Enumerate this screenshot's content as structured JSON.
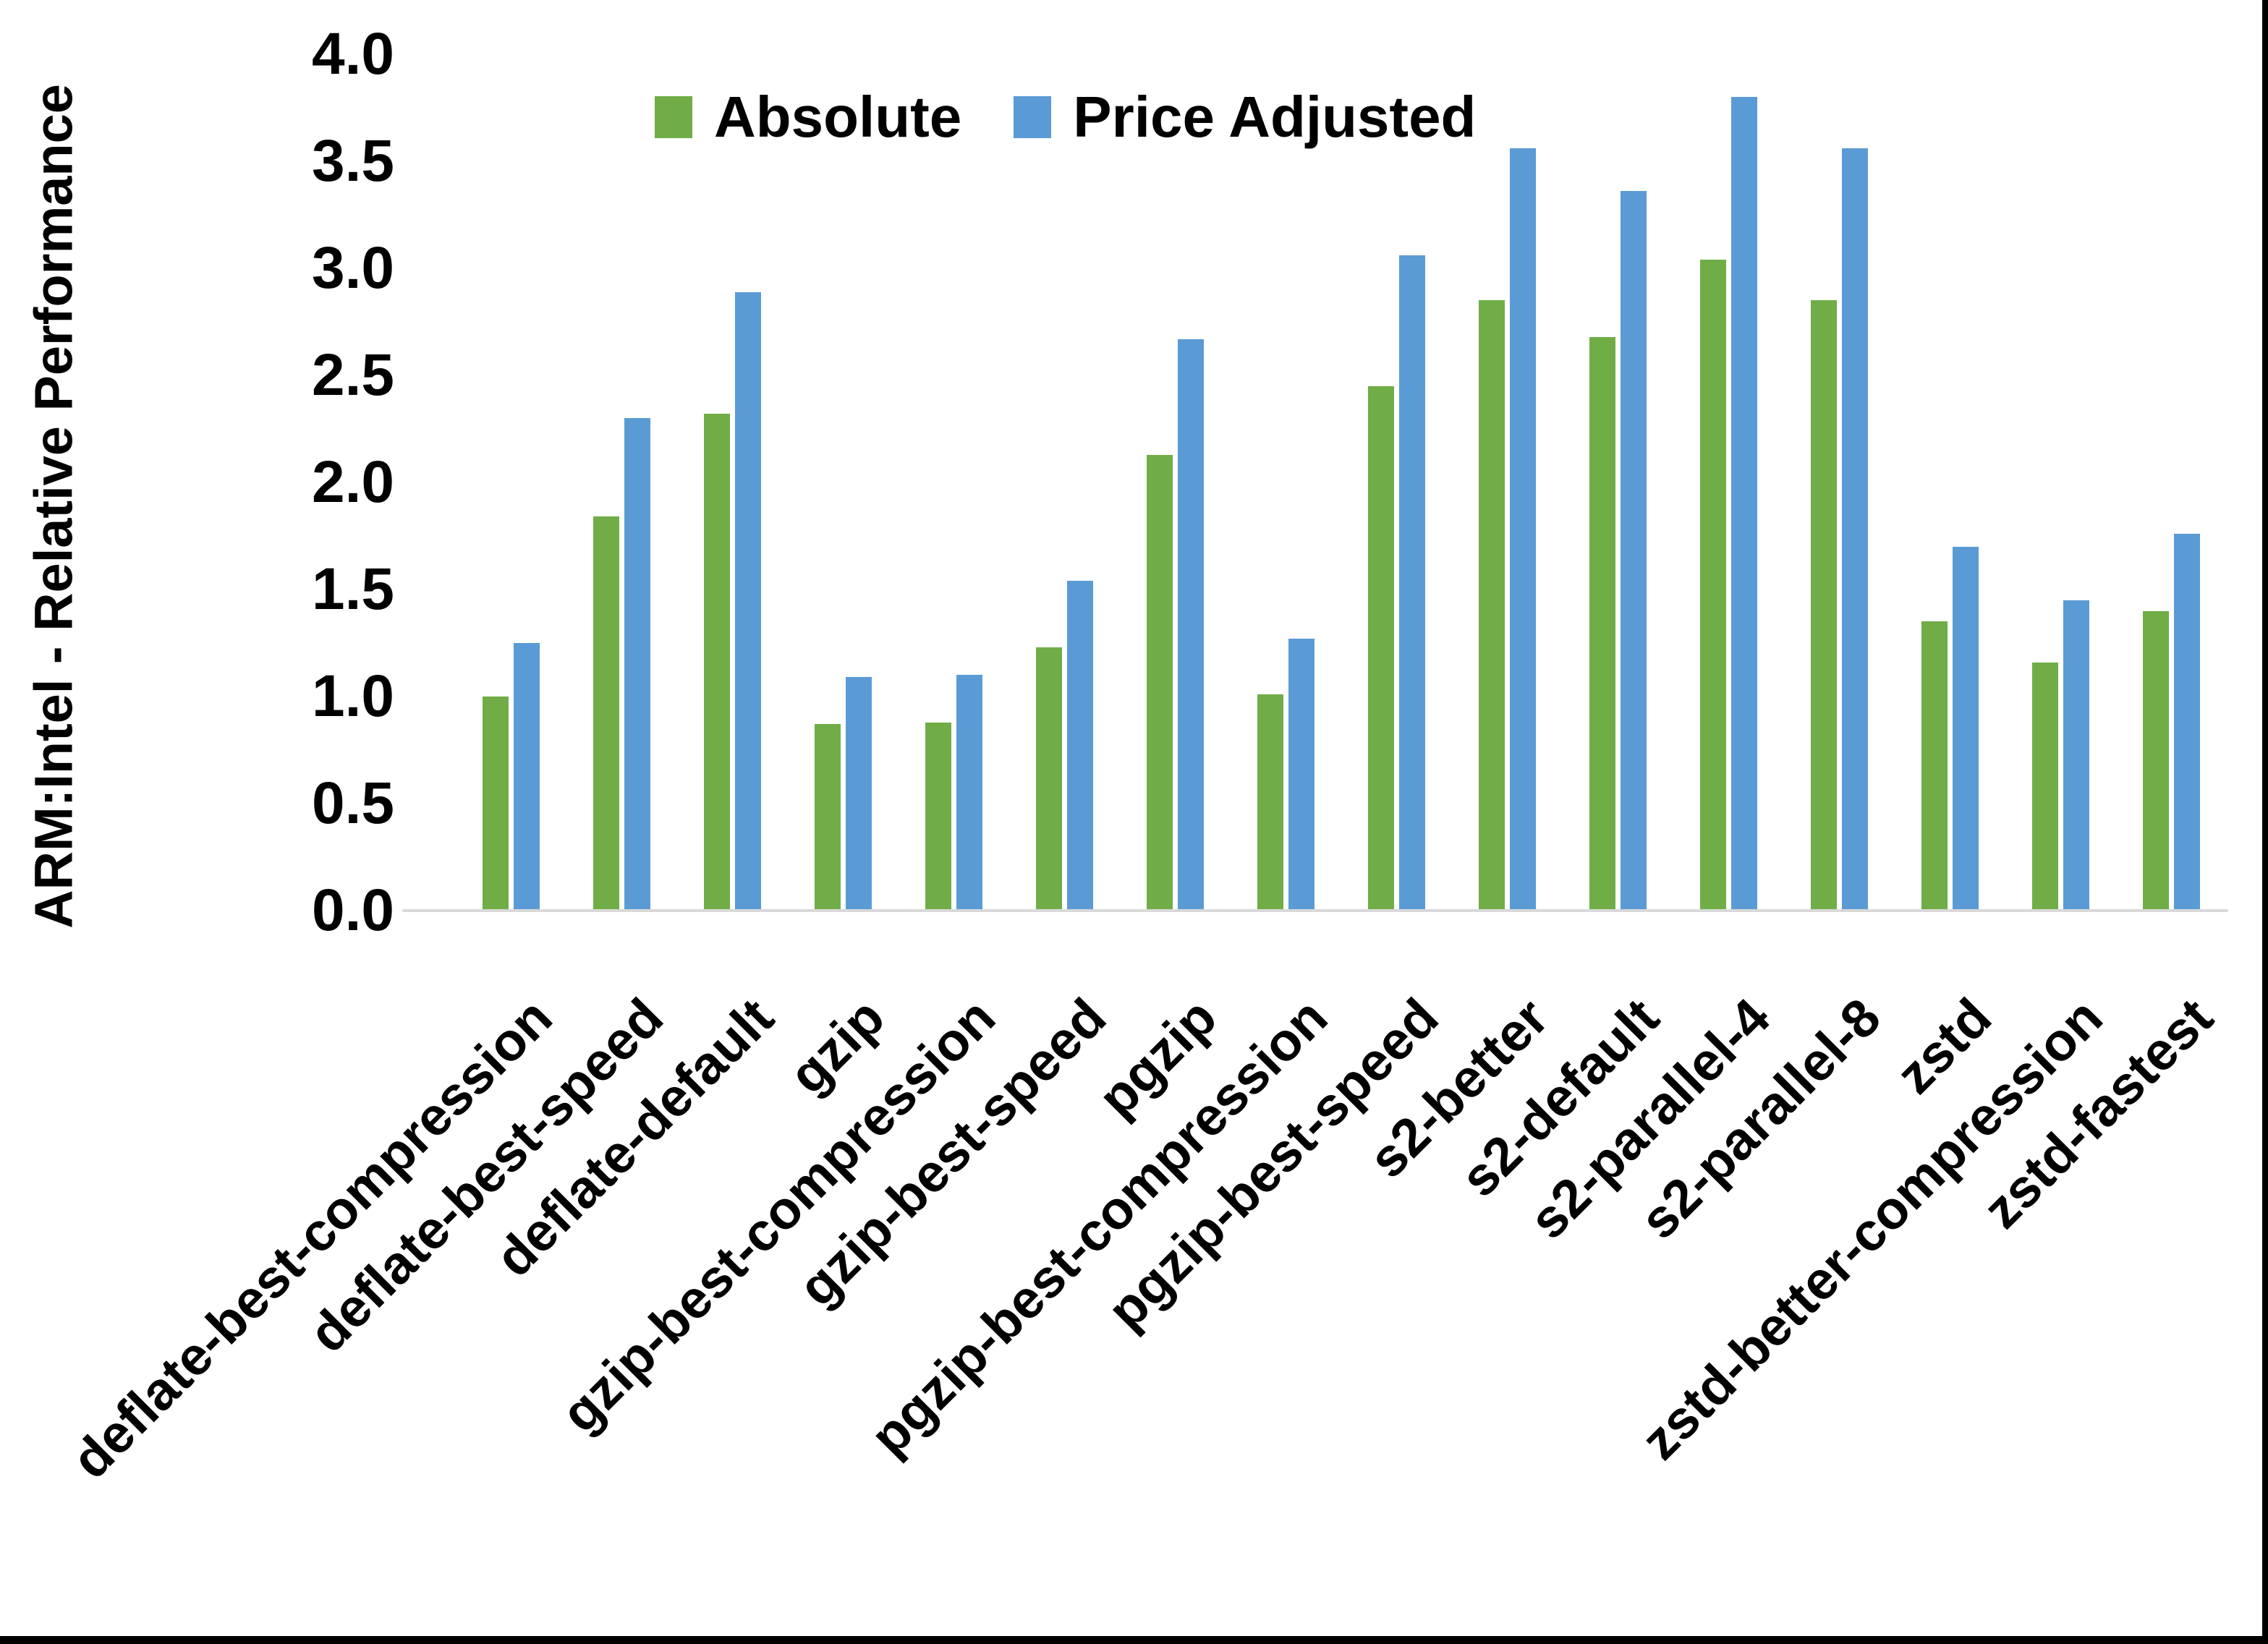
{
  "frame": {
    "bottom_edge_color": "#000000",
    "right_edge_color": "#000000",
    "background": "#FFFFFF"
  },
  "axis": {
    "baseline_color": "#D9D9D9",
    "text_color": "#000000"
  },
  "chart_data": {
    "type": "bar",
    "title": "",
    "y_axis_title": "ARM:Intel - Relative Performance",
    "x_axis_title": "",
    "ylim": [
      0.0,
      4.0
    ],
    "y_tick_step": 0.5,
    "y_ticks": [
      "0.0",
      "0.5",
      "1.0",
      "1.5",
      "2.0",
      "2.5",
      "3.0",
      "3.5",
      "4.0"
    ],
    "grid": false,
    "legend_position": "top-center",
    "categories": [
      "deflate-best-compression",
      "deflate-best-speed",
      "deflate-default",
      "gzip",
      "gzip-best-compression",
      "gzip-best-speed",
      "pgzip",
      "pgzip-best-compression",
      "pgzip-best-speed",
      "s2-better",
      "s2-default",
      "s2-parallel-4",
      "s2-parallel-8",
      "zstd",
      "zstd-better-compression",
      "zstd-fastest"
    ],
    "series": [
      {
        "name": "Absolute",
        "color": "#70AD47",
        "values": [
          1.0,
          1.84,
          2.32,
          0.87,
          0.88,
          1.23,
          2.13,
          1.01,
          2.45,
          2.85,
          2.68,
          3.04,
          2.85,
          1.35,
          1.16,
          1.4
        ]
      },
      {
        "name": "Price Adjusted",
        "color": "#5B9BD5",
        "values": [
          1.25,
          2.3,
          2.89,
          1.09,
          1.1,
          1.54,
          2.67,
          1.27,
          3.06,
          3.56,
          3.36,
          3.8,
          3.56,
          1.7,
          1.45,
          1.76
        ]
      }
    ]
  }
}
